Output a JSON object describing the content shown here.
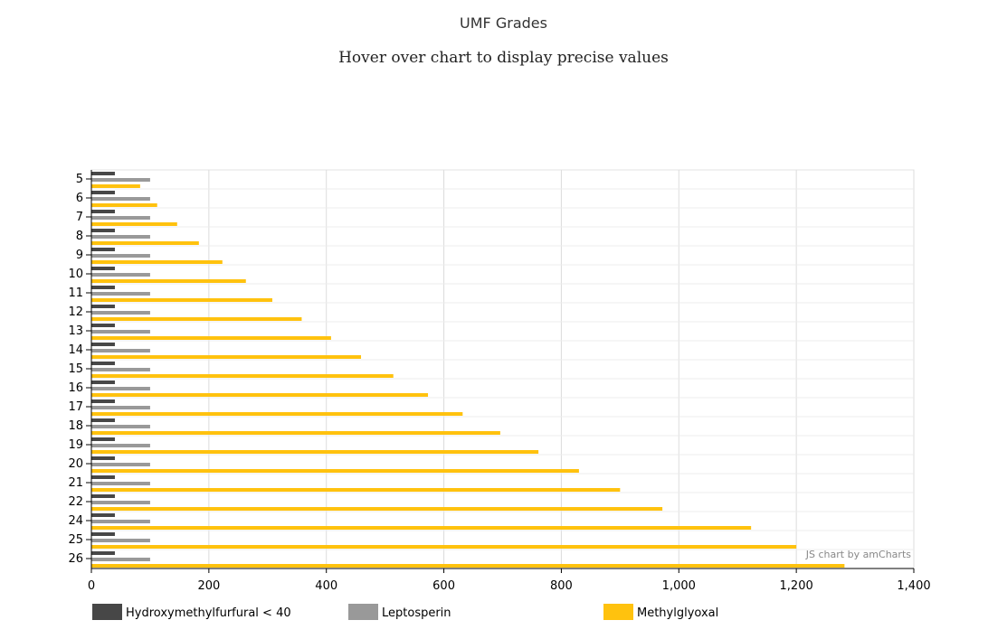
{
  "page": {
    "title": "UMF Grades",
    "subtitle": "Hover over chart to display precise values",
    "credit": "JS chart by amCharts"
  },
  "chart_data": {
    "type": "bar",
    "orientation": "horizontal",
    "categories": [
      "5",
      "6",
      "7",
      "8",
      "9",
      "10",
      "11",
      "12",
      "13",
      "14",
      "15",
      "16",
      "17",
      "18",
      "19",
      "20",
      "21",
      "22",
      "24",
      "25",
      "26"
    ],
    "series": [
      {
        "name": "Hydroxymethylfurfural < 40",
        "color": "#474747",
        "values": [
          40,
          40,
          40,
          40,
          40,
          40,
          40,
          40,
          40,
          40,
          40,
          40,
          40,
          40,
          40,
          40,
          40,
          40,
          40,
          40,
          40
        ]
      },
      {
        "name": "Leptosperin",
        "color": "#999999",
        "values": [
          100,
          100,
          100,
          100,
          100,
          100,
          100,
          100,
          100,
          100,
          100,
          100,
          100,
          100,
          100,
          100,
          100,
          100,
          100,
          100,
          100
        ]
      },
      {
        "name": "Methylglyoxal",
        "color": "#ffc20e",
        "values": [
          83,
          112,
          146,
          183,
          223,
          263,
          308,
          358,
          408,
          459,
          514,
          573,
          632,
          696,
          761,
          830,
          900,
          972,
          1123,
          1200,
          1282
        ]
      }
    ],
    "xlim": [
      0,
      1400
    ],
    "xticks": [
      "0",
      "200",
      "400",
      "600",
      "800",
      "1,000",
      "1,200",
      "1,400"
    ],
    "xtick_values": [
      0,
      200,
      400,
      600,
      800,
      1000,
      1200,
      1400
    ],
    "grid": true,
    "legend_position": "bottom"
  }
}
